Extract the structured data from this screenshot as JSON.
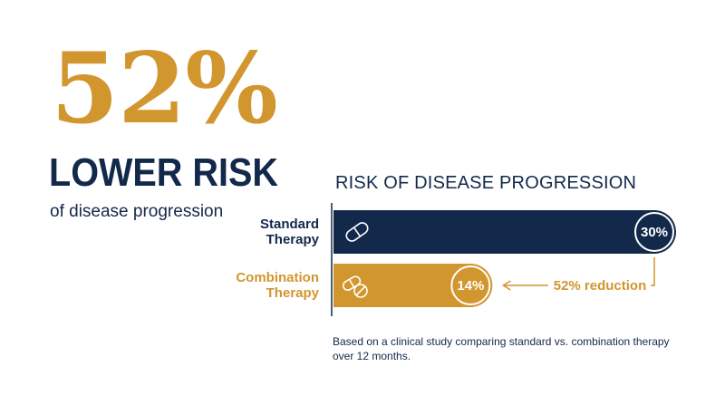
{
  "hero": {
    "stat": "52%",
    "headline": "LOWER RISK",
    "subtext": "of disease progression"
  },
  "colors": {
    "navy": "#13294b",
    "gold": "#d2962f",
    "white": "#ffffff"
  },
  "chart_data": {
    "type": "bar",
    "orientation": "horizontal",
    "title": "RISK OF DISEASE PROGRESSION",
    "categories": [
      "Standard\nTherapy",
      "Combination\nTherapy"
    ],
    "values": [
      30,
      14
    ],
    "value_labels": [
      "30%",
      "14%"
    ],
    "bar_colors": [
      "#13294b",
      "#d2962f"
    ],
    "icons": [
      "pill-icon",
      "pills-icon"
    ],
    "annotation": "52% reduction",
    "xlim": [
      0,
      30
    ],
    "grid": false,
    "legend": "none"
  },
  "footnote": "Based on a clinical study comparing standard vs. combination therapy over 12 months."
}
